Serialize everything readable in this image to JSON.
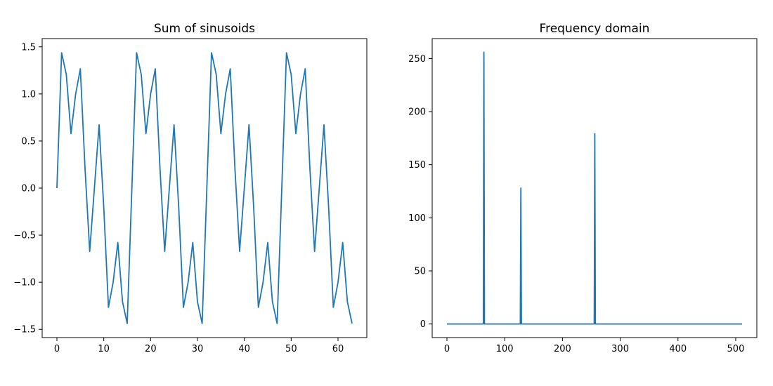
{
  "colors": {
    "line": "#1f77b4",
    "axes": "#000000",
    "background": "#ffffff"
  },
  "chart_data": [
    {
      "type": "line",
      "title": "Sum of sinusoids",
      "xlabel": "",
      "ylabel": "",
      "xlim": [
        -3.15,
        66.15
      ],
      "ylim": [
        -1.5877,
        1.5877
      ],
      "xticks": [
        0,
        10,
        20,
        30,
        40,
        50,
        60
      ],
      "xtick_labels": [
        "0",
        "10",
        "20",
        "30",
        "40",
        "50",
        "60"
      ],
      "yticks": [
        -1.5,
        -1.0,
        -0.5,
        0.0,
        0.5,
        1.0,
        1.5
      ],
      "ytick_labels": [
        "−1.5",
        "−1.0",
        "−0.5",
        "0.0",
        "0.5",
        "1.0",
        "1.5"
      ],
      "grid": false,
      "series": [
        {
          "x": [
            0,
            1,
            2,
            3,
            4,
            5,
            6,
            7,
            8,
            9,
            10,
            11,
            12,
            13,
            14,
            15,
            16,
            17,
            18,
            19,
            20,
            21,
            22,
            23,
            24,
            25,
            26,
            27,
            28,
            29,
            30,
            31,
            32,
            33,
            34,
            35,
            36,
            37,
            38,
            39,
            40,
            41,
            42,
            43,
            44,
            45,
            46,
            47,
            48,
            49,
            50,
            51,
            52,
            53,
            54,
            55,
            56,
            57,
            58,
            59,
            60,
            61,
            62,
            63
          ],
          "y": [
            0.0,
            1.4379,
            1.2071,
            0.5783,
            1.0,
            1.2672,
            0.2071,
            -0.6725,
            0.0,
            0.6725,
            -0.2071,
            -1.2672,
            -1.0,
            -0.5783,
            -1.2071,
            -1.4379,
            0.0,
            1.4379,
            1.2071,
            0.5783,
            1.0,
            1.2672,
            0.2071,
            -0.6725,
            0.0,
            0.6725,
            -0.2071,
            -1.2672,
            -1.0,
            -0.5783,
            -1.2071,
            -1.4379,
            0.0,
            1.4379,
            1.2071,
            0.5783,
            1.0,
            1.2672,
            0.2071,
            -0.6725,
            0.0,
            0.6725,
            -0.2071,
            -1.2672,
            -1.0,
            -0.5783,
            -1.2071,
            -1.4379,
            0.0,
            1.4379,
            1.2071,
            0.5783,
            1.0,
            1.2672,
            0.2071,
            -0.6725,
            0.0,
            0.6725,
            -0.2071,
            -1.2672,
            -1.0,
            -0.5783,
            -1.2071,
            -1.4379
          ]
        }
      ]
    },
    {
      "type": "line",
      "title": "Frequency domain",
      "xlabel": "",
      "ylabel": "",
      "xlim": [
        -25.55,
        536.55
      ],
      "ylim": [
        -12.8,
        268.8
      ],
      "xticks": [
        0,
        100,
        200,
        300,
        400,
        500
      ],
      "xtick_labels": [
        "0",
        "100",
        "200",
        "300",
        "400",
        "500"
      ],
      "yticks": [
        0,
        50,
        100,
        150,
        200,
        250
      ],
      "ytick_labels": [
        "0",
        "50",
        "100",
        "150",
        "200",
        "250"
      ],
      "grid": false,
      "series": [
        {
          "x": [
            0,
            63,
            64,
            65,
            127,
            128,
            129,
            255,
            256,
            257,
            511
          ],
          "y": [
            0,
            0,
            256,
            0,
            0,
            128,
            0,
            0,
            179.2,
            0,
            0
          ]
        }
      ]
    }
  ]
}
